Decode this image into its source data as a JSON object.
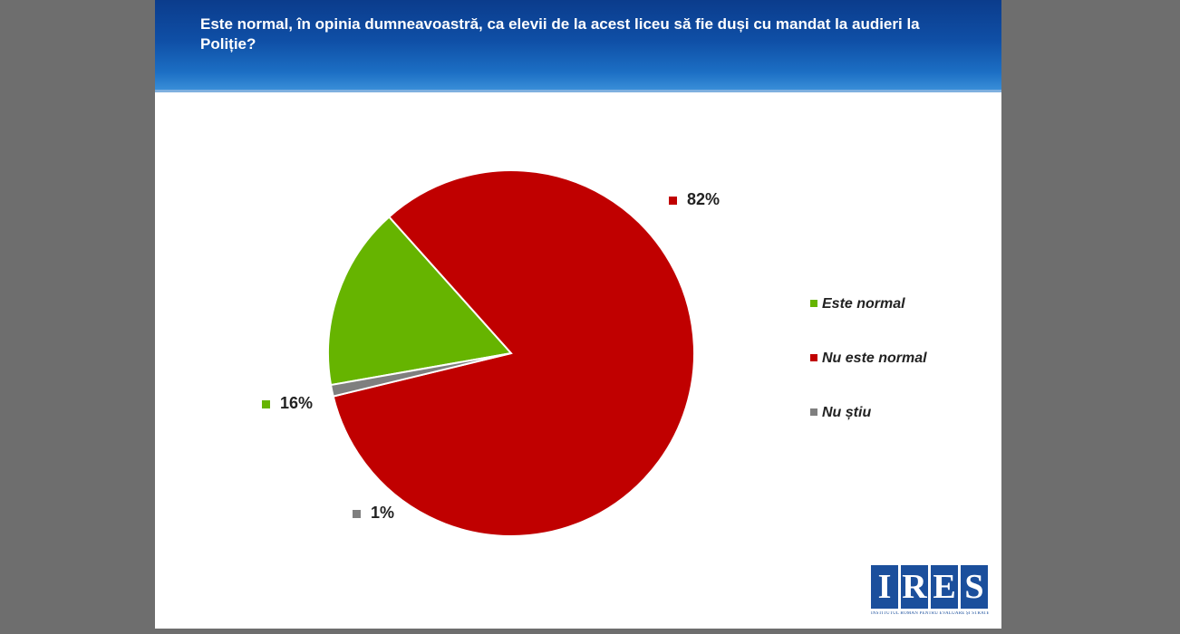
{
  "title": "Este normal, în opinia dumneavoastră, ca elevii de la acest liceu să fie duși cu mandat la audieri la Poliție?",
  "chart_data": {
    "type": "pie",
    "title": "Este normal, în opinia dumneavoastră, ca elevii de la acest liceu să fie duși cu mandat la audieri la Poliție?",
    "categories": [
      "Este normal",
      "Nu este normal",
      "Nu știu"
    ],
    "values": [
      16,
      82,
      1
    ],
    "labels": [
      "16%",
      "82%",
      "1%"
    ],
    "colors": [
      "#66b400",
      "#c00000",
      "#7f7f7f"
    ],
    "legend_position": "right"
  },
  "logo": {
    "letters": [
      "I",
      "R",
      "E",
      "S"
    ],
    "subtitle": "INSTITUTUL ROMÂN PENTRU EVALUARE ȘI STRATEGIE"
  }
}
